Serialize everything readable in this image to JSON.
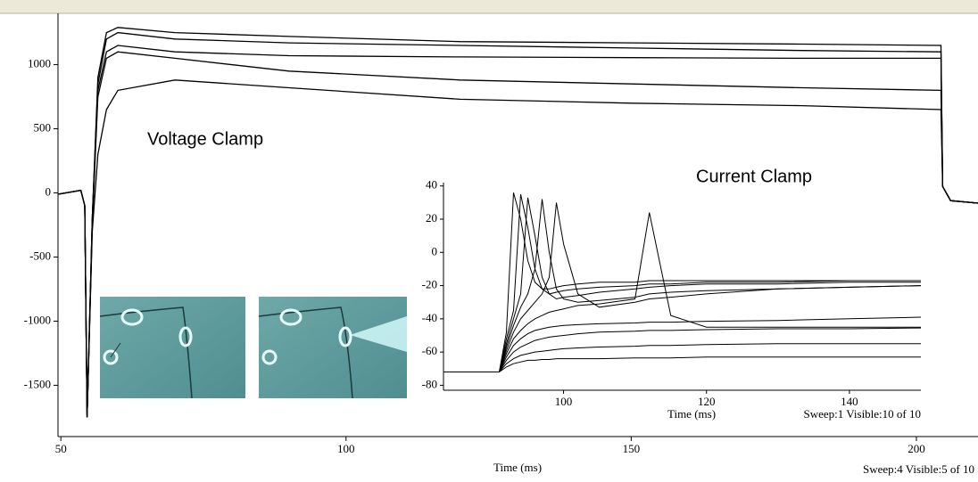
{
  "chart_data": [
    {
      "type": "line",
      "annotation": "Voltage Clamp",
      "xlabel": "Time (ms)",
      "status": "Sweep:4 Visible:5 of 10",
      "xlim": [
        49.5,
        210.8
      ],
      "ylim": [
        -1900,
        1400
      ],
      "xticks": [
        50,
        100,
        150,
        200
      ],
      "yticks": [
        -1500,
        -1000,
        -500,
        0,
        500,
        1000
      ],
      "x": [
        49.5,
        53.5,
        54.2,
        54.6,
        55.5,
        56.5,
        58,
        60,
        70,
        90,
        120,
        150,
        180,
        204.3,
        204.6,
        206,
        210.8
      ],
      "series": [
        {
          "color": "#000000",
          "values": [
            -10,
            20,
            -100,
            -1750,
            -200,
            900,
            1250,
            1290,
            1250,
            1220,
            1180,
            1170,
            1160,
            1150,
            50,
            -60,
            -80
          ]
        },
        {
          "color": "#000000",
          "values": [
            -10,
            20,
            -100,
            -1750,
            -200,
            850,
            1200,
            1250,
            1200,
            1170,
            1150,
            1130,
            1110,
            1100,
            50,
            -60,
            -80
          ]
        },
        {
          "color": "#000000",
          "values": [
            -10,
            20,
            -100,
            -1750,
            -200,
            800,
            1100,
            1150,
            1100,
            1070,
            1060,
            1055,
            1050,
            1050,
            50,
            -60,
            -80
          ]
        },
        {
          "color": "#000000",
          "values": [
            -10,
            20,
            -100,
            -1750,
            -250,
            750,
            1050,
            1100,
            1050,
            950,
            880,
            850,
            820,
            800,
            50,
            -60,
            -80
          ]
        },
        {
          "color": "#000000",
          "values": [
            -10,
            20,
            -100,
            -1750,
            -300,
            300,
            650,
            800,
            880,
            820,
            730,
            700,
            680,
            650,
            50,
            -60,
            -80
          ]
        }
      ]
    },
    {
      "type": "line",
      "annotation": "Current Clamp",
      "xlabel": "Time (ms)",
      "status": "Sweep:1 Visible:10 of 10",
      "xlim": [
        83.2,
        150
      ],
      "ylim": [
        -83,
        42
      ],
      "xticks": [
        100,
        120,
        140
      ],
      "yticks": [
        -80,
        -60,
        -40,
        -20,
        0,
        20,
        40
      ],
      "x": [
        83.2,
        91,
        92,
        93,
        94,
        95,
        96,
        97,
        98,
        99,
        100,
        102,
        105,
        110,
        112,
        115,
        120,
        130,
        140,
        150
      ],
      "series": [
        {
          "color": "#000000",
          "values": [
            -72,
            -72,
            -69,
            -67,
            -66,
            -65,
            -65,
            -64.5,
            -64.5,
            -64,
            -64,
            -64,
            -64,
            -63.5,
            -63.5,
            -63.5,
            -63,
            -63,
            -63,
            -63
          ]
        },
        {
          "color": "#000000",
          "values": [
            -72,
            -72,
            -67,
            -64,
            -62,
            -61,
            -60,
            -59.5,
            -59,
            -58.5,
            -58,
            -57.5,
            -57,
            -56.5,
            -56,
            -56,
            -55.5,
            -55,
            -55,
            -55
          ]
        },
        {
          "color": "#000000",
          "values": [
            -72,
            -72,
            -65,
            -60,
            -57,
            -55,
            -53,
            -52,
            -51,
            -50.5,
            -50,
            -49,
            -48,
            -47.5,
            -47,
            -47,
            -46.5,
            -46,
            -46,
            -45.5
          ]
        },
        {
          "color": "#000000",
          "values": [
            -72,
            -72,
            -63,
            -56,
            -52,
            -49,
            -47,
            -46,
            -45,
            -44.5,
            -44,
            -43.5,
            -43,
            -42.5,
            -42,
            -42,
            -41.5,
            -41,
            -40,
            -39
          ]
        },
        {
          "color": "#000000",
          "values": [
            -72,
            -72,
            -61,
            -52,
            -47,
            -43,
            -40,
            -38,
            -36,
            -35,
            -34,
            -32,
            -31,
            -28,
            24,
            -38,
            -45,
            -45,
            -45,
            -45
          ]
        },
        {
          "color": "#000000",
          "values": [
            -72,
            -72,
            -59,
            -48,
            -40,
            -35,
            -30,
            -25,
            -15,
            30,
            5,
            -25,
            -33,
            -30,
            -28,
            -27,
            -25,
            -22,
            -21,
            -20
          ]
        },
        {
          "color": "#000000",
          "values": [
            -72,
            -72,
            -57,
            -44,
            -33,
            -25,
            -10,
            32,
            0,
            -22,
            -28,
            -30,
            -29,
            -27,
            -25,
            -24,
            -23,
            -22,
            -21,
            -20
          ]
        },
        {
          "color": "#000000",
          "values": [
            -72,
            -72,
            -55,
            -40,
            -25,
            33,
            10,
            -15,
            -25,
            -28,
            -27,
            -26,
            -24,
            -22,
            -21,
            -20,
            -19,
            -19,
            -18,
            -18
          ]
        },
        {
          "color": "#000000",
          "values": [
            -72,
            -72,
            -52,
            -35,
            35,
            15,
            -10,
            -22,
            -25,
            -24,
            -23,
            -22,
            -21,
            -20,
            -19,
            -19,
            -18,
            -18,
            -17,
            -17
          ]
        },
        {
          "color": "#000000",
          "values": [
            -72,
            -72,
            -48,
            36,
            20,
            -5,
            -18,
            -22,
            -22,
            -21,
            -20,
            -19,
            -18,
            -18,
            -17,
            -17,
            -17,
            -17,
            -17,
            -17
          ]
        }
      ]
    }
  ]
}
